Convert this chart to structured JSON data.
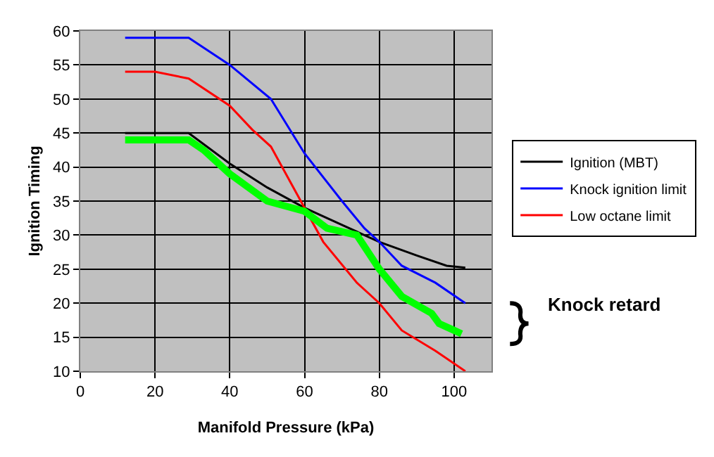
{
  "chart_data": {
    "type": "line",
    "xlabel": "Manifold Pressure (kPa)",
    "ylabel": "Ignition Timing",
    "xlim": [
      0,
      110
    ],
    "xticks": [
      0,
      20,
      40,
      60,
      80,
      100
    ],
    "ylim": [
      10,
      60
    ],
    "yticks": [
      10,
      15,
      20,
      25,
      30,
      35,
      40,
      45,
      50,
      55,
      60
    ],
    "grid": true,
    "legend": "right",
    "marker": "none",
    "line_style": "solid",
    "annotations": [
      "Knock retard"
    ],
    "series": [
      {
        "name": "Ignition (MBT)",
        "color": "#000000",
        "x": [
          12,
          29,
          40,
          50,
          60,
          70,
          80,
          90,
          98,
          103
        ],
        "values": [
          45,
          45,
          40.5,
          37,
          34,
          31.5,
          29,
          27,
          25.5,
          25.2
        ]
      },
      {
        "name": "Knock ignition limit",
        "color": "#0000ff",
        "x": [
          12,
          29,
          40,
          51,
          60,
          70,
          76,
          80,
          86,
          95,
          103
        ],
        "values": [
          59,
          59,
          55,
          50,
          42,
          35,
          31,
          29,
          25.5,
          23,
          20
        ]
      },
      {
        "name": "Low octane limit",
        "color": "#ff0000",
        "x": [
          12,
          20,
          29,
          40,
          46,
          51,
          56,
          60,
          65,
          74,
          80,
          86,
          95,
          103
        ],
        "values": [
          54,
          54,
          53,
          49,
          45.5,
          43,
          38,
          34,
          29,
          23,
          20,
          16,
          13,
          10
        ]
      },
      {
        "color": "#00ff00",
        "x": [
          12,
          29,
          33,
          40,
          50,
          60,
          66,
          74,
          80,
          86,
          94,
          96,
          100,
          102
        ],
        "values": [
          44,
          44,
          42.5,
          39,
          35,
          33.5,
          31,
          30,
          25,
          21,
          18.5,
          17,
          16,
          15.5
        ]
      }
    ]
  }
}
